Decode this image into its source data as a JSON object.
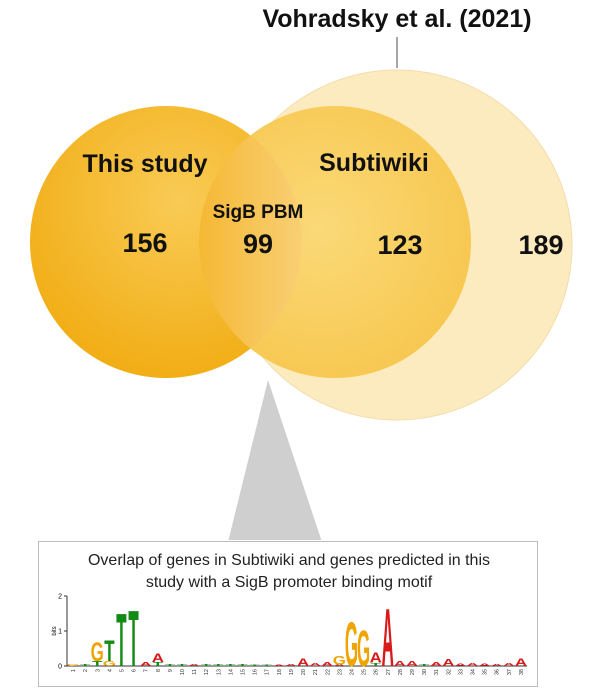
{
  "header": {
    "citation": "Vohradsky et al. (2021)"
  },
  "venn": {
    "this_study": {
      "label": "This study",
      "count": "156"
    },
    "overlap": {
      "label": "SigB PBM",
      "count": "99"
    },
    "subtiwiki": {
      "label": "Subtiwiki",
      "count": "123"
    },
    "vohradsky": {
      "count": "189"
    }
  },
  "colors": {
    "this_study": "#f4b41a",
    "subtiwiki": "#f8cf5a",
    "vohradsky": "#fdebc0",
    "callout": "#cfcfcf"
  },
  "caption": {
    "text": "Overlap of genes in Subtiwiki and genes predicted in this\nstudy with a SigB promoter binding motif"
  },
  "logo": {
    "y_axis_label": "bits",
    "y_ticks": [
      "2",
      "1",
      "0"
    ],
    "positions": [
      "1",
      "2",
      "3",
      "4",
      "5",
      "6",
      "7",
      "8",
      "9",
      "10",
      "11",
      "12",
      "13",
      "14",
      "15",
      "16",
      "17",
      "18",
      "19",
      "20",
      "21",
      "22",
      "23",
      "24",
      "25",
      "26",
      "27",
      "28",
      "29",
      "30",
      "31",
      "32",
      "33",
      "34",
      "35",
      "36",
      "37",
      "38"
    ],
    "columns": [
      [
        [
          "G",
          0.06
        ]
      ],
      [
        [
          "T",
          0.05
        ]
      ],
      [
        [
          "G",
          0.55
        ],
        [
          "T",
          0.15
        ]
      ],
      [
        [
          "T",
          0.6
        ],
        [
          "G",
          0.15
        ]
      ],
      [
        [
          "T",
          1.55
        ]
      ],
      [
        [
          "T",
          1.65
        ]
      ],
      [
        [
          "A",
          0.12
        ]
      ],
      [
        [
          "A",
          0.25
        ],
        [
          "T",
          0.12
        ]
      ],
      [
        [
          "T",
          0.05
        ]
      ],
      [
        [
          "T",
          0.05
        ]
      ],
      [
        [
          "A",
          0.05
        ]
      ],
      [
        [
          "T",
          0.05
        ]
      ],
      [
        [
          "T",
          0.05
        ]
      ],
      [
        [
          "T",
          0.05
        ]
      ],
      [
        [
          "T",
          0.05
        ]
      ],
      [
        [
          "T",
          0.03
        ]
      ],
      [
        [
          "T",
          0.03
        ]
      ],
      [
        [
          "A",
          0.03
        ]
      ],
      [
        [
          "A",
          0.05
        ]
      ],
      [
        [
          "A",
          0.22
        ]
      ],
      [
        [
          "A",
          0.1
        ]
      ],
      [
        [
          "A",
          0.12
        ]
      ],
      [
        [
          "G",
          0.25
        ],
        [
          "A",
          0.05
        ]
      ],
      [
        [
          "G",
          1.3
        ]
      ],
      [
        [
          "G",
          1.05
        ]
      ],
      [
        [
          "A",
          0.3
        ],
        [
          "T",
          0.1
        ]
      ],
      [
        [
          "A",
          1.7
        ]
      ],
      [
        [
          "A",
          0.15
        ]
      ],
      [
        [
          "A",
          0.15
        ]
      ],
      [
        [
          "T",
          0.05
        ]
      ],
      [
        [
          "A",
          0.12
        ]
      ],
      [
        [
          "A",
          0.2
        ]
      ],
      [
        [
          "A",
          0.08
        ]
      ],
      [
        [
          "A",
          0.1
        ]
      ],
      [
        [
          "A",
          0.08
        ]
      ],
      [
        [
          "A",
          0.05
        ]
      ],
      [
        [
          "A",
          0.1
        ]
      ],
      [
        [
          "A",
          0.22
        ]
      ]
    ],
    "base_colors": {
      "A": "#d81b1b",
      "C": "#1f3fbf",
      "G": "#f0a400",
      "T": "#138a13"
    }
  }
}
